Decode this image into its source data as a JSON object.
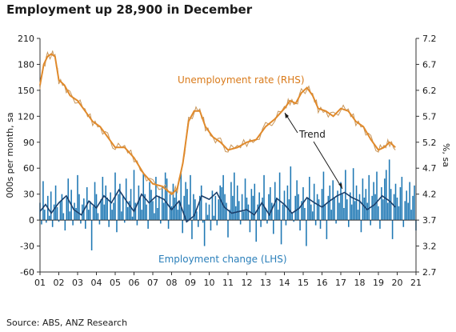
{
  "title": "Employment up 28,900 in December",
  "source": "Source: ABS, ANZ Research",
  "chart_data": {
    "type": "bar",
    "title": "Employment up 28,900 in December",
    "ylabel_left": "000s per month, sa",
    "ylabel_right": "%, sa",
    "y_left": {
      "min": -60,
      "max": 210,
      "ticks": [
        -60,
        -30,
        0,
        30,
        60,
        90,
        120,
        150,
        180,
        210
      ]
    },
    "y_right": {
      "min": 2.7,
      "max": 7.2,
      "ticks": [
        "2.7",
        "3.2",
        "3.7",
        "4.2",
        "4.7",
        "5.2",
        "5.7",
        "6.2",
        "6.7",
        "7.2"
      ]
    },
    "x_ticks": [
      "01",
      "02",
      "03",
      "04",
      "05",
      "06",
      "07",
      "08",
      "09",
      "10",
      "11",
      "12",
      "13",
      "14",
      "15",
      "16",
      "17",
      "18",
      "19",
      "20",
      "21"
    ],
    "x_range": [
      2001.0,
      2021.0
    ],
    "annotations": [
      {
        "text": "Unemployment rate (RHS)",
        "color": "#d97a1a"
      },
      {
        "text": "Employment change (LHS)",
        "color": "#2a7fba"
      },
      {
        "text": "Trend",
        "color": "#1a1a1a"
      }
    ],
    "colors": {
      "bars": "#1f78b4",
      "unemployment": "#e08a2c",
      "unemployment_raw": "#c8965a",
      "trend": "#1b3f6b"
    },
    "series": [
      {
        "name": "Unemployment rate (RHS)",
        "axis": "right",
        "x": [
          2001.0,
          2001.2,
          2001.4,
          2001.6,
          2001.8,
          2002.0,
          2002.3,
          2002.6,
          2003.0,
          2003.4,
          2003.8,
          2004.2,
          2004.6,
          2005.0,
          2005.5,
          2006.0,
          2006.5,
          2007.0,
          2007.5,
          2008.0,
          2008.3,
          2008.6,
          2008.9,
          2009.2,
          2009.5,
          2009.8,
          2010.2,
          2010.6,
          2011.0,
          2011.5,
          2012.0,
          2012.5,
          2013.0,
          2013.5,
          2014.0,
          2014.3,
          2014.6,
          2014.9,
          2015.2,
          2015.5,
          2015.8,
          2016.2,
          2016.6,
          2017.0,
          2017.4,
          2017.8,
          2018.2,
          2018.6,
          2019.0,
          2019.3,
          2019.6,
          2019.9
        ],
        "values": [
          6.3,
          6.7,
          6.85,
          6.9,
          6.85,
          6.4,
          6.3,
          6.1,
          6.0,
          5.8,
          5.6,
          5.5,
          5.3,
          5.1,
          5.1,
          4.9,
          4.6,
          4.4,
          4.35,
          4.2,
          4.3,
          4.8,
          5.6,
          5.8,
          5.8,
          5.5,
          5.3,
          5.2,
          5.05,
          5.1,
          5.2,
          5.25,
          5.5,
          5.65,
          5.85,
          6.0,
          5.95,
          6.15,
          6.25,
          6.1,
          5.85,
          5.8,
          5.7,
          5.85,
          5.8,
          5.6,
          5.5,
          5.25,
          5.05,
          5.1,
          5.2,
          5.1
        ]
      },
      {
        "name": "Trend",
        "axis": "left",
        "x": [
          2001.0,
          2001.3,
          2001.6,
          2002.0,
          2002.4,
          2002.8,
          2003.2,
          2003.6,
          2004.0,
          2004.4,
          2004.8,
          2005.2,
          2005.6,
          2006.0,
          2006.4,
          2006.8,
          2007.2,
          2007.6,
          2008.0,
          2008.4,
          2008.8,
          2009.2,
          2009.6,
          2010.0,
          2010.4,
          2010.8,
          2011.2,
          2011.6,
          2012.0,
          2012.4,
          2012.8,
          2013.2,
          2013.6,
          2014.0,
          2014.4,
          2014.8,
          2015.2,
          2015.6,
          2016.0,
          2016.4,
          2016.8,
          2017.2,
          2017.6,
          2018.0,
          2018.4,
          2018.8,
          2019.2,
          2019.6,
          2019.9
        ],
        "values": [
          10,
          18,
          8,
          20,
          28,
          12,
          6,
          22,
          14,
          28,
          20,
          35,
          22,
          10,
          30,
          20,
          28,
          24,
          12,
          22,
          -2,
          5,
          28,
          24,
          32,
          15,
          8,
          10,
          12,
          6,
          20,
          6,
          25,
          18,
          8,
          14,
          26,
          20,
          15,
          22,
          28,
          32,
          26,
          22,
          12,
          18,
          28,
          22,
          15
        ]
      },
      {
        "name": "Employment change (LHS)",
        "axis": "left",
        "start": 2001.0,
        "step": 0.08333,
        "values": [
          20,
          -5,
          45,
          12,
          -3,
          28,
          5,
          33,
          -8,
          18,
          40,
          15,
          -2,
          22,
          30,
          8,
          -12,
          26,
          48,
          10,
          35,
          -6,
          20,
          14,
          52,
          30,
          -4,
          18,
          25,
          -10,
          38,
          12,
          22,
          -35,
          16,
          44,
          30,
          8,
          -5,
          24,
          50,
          18,
          40,
          26,
          -8,
          32,
          12,
          20,
          55,
          -14,
          30,
          42,
          10,
          28,
          -3,
          48,
          15,
          22,
          36,
          4,
          58,
          20,
          -6,
          40,
          26,
          12,
          55,
          30,
          18,
          -10,
          44,
          35,
          22,
          8,
          50,
          14,
          28,
          -4,
          38,
          20,
          55,
          48,
          -10,
          30,
          16,
          42,
          26,
          34,
          12,
          22,
          55,
          -15,
          28,
          44,
          36,
          18,
          52,
          -22,
          30,
          24,
          10,
          -8,
          28,
          40,
          -3,
          -30,
          20,
          6,
          18,
          -12,
          34,
          5,
          28,
          -6,
          24,
          40,
          38,
          52,
          30,
          20,
          -20,
          12,
          44,
          28,
          55,
          16,
          40,
          22,
          -5,
          30,
          10,
          48,
          26,
          18,
          -14,
          36,
          28,
          42,
          -25,
          18,
          32,
          -8,
          26,
          52,
          14,
          -4,
          30,
          38,
          20,
          -16,
          44,
          26,
          12,
          55,
          -28,
          18,
          34,
          -6,
          40,
          24,
          62,
          8,
          -2,
          28,
          46,
          30,
          -12,
          22,
          38,
          14,
          -30,
          26,
          50,
          18,
          10,
          42,
          -6,
          30,
          24,
          -10,
          36,
          56,
          18,
          -22,
          28,
          40,
          12,
          46,
          26,
          -4,
          34,
          20,
          44,
          30,
          14,
          58,
          24,
          -8,
          32,
          18,
          60,
          22,
          40,
          12,
          30,
          -14,
          48,
          26,
          36,
          20,
          52,
          -6,
          28,
          44,
          30,
          56,
          16,
          -10,
          38,
          24,
          48,
          58,
          20,
          70,
          36,
          -22,
          30,
          42,
          26,
          16,
          38,
          50,
          -8,
          22,
          34,
          20,
          44,
          12,
          28,
          40,
          -12,
          30,
          36,
          18,
          38,
          -24,
          30
        ]
      }
    ]
  }
}
